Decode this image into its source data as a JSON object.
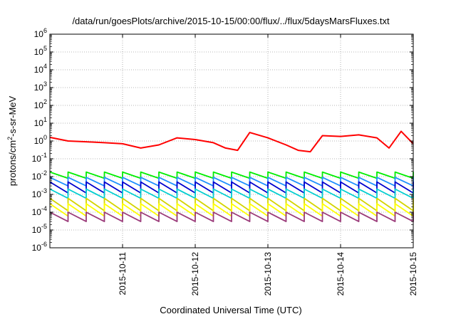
{
  "chart_data": {
    "type": "line",
    "title": "/data/run/goesPlots/archive/2015-10-15/00:00/flux/../flux/5daysMarsFluxes.txt",
    "xlabel": "Coordinated Universal Time (UTC)",
    "ylabel_parts": {
      "base": "protons/cm",
      "sup": "2",
      "rest": "-s-sr-MeV"
    },
    "y_scale": "log",
    "ylim": [
      1e-06,
      1000000.0
    ],
    "y_tick_exponents": [
      -6,
      -5,
      -4,
      -3,
      -2,
      -1,
      0,
      1,
      2,
      3,
      4,
      5,
      6
    ],
    "y_tick_base": "10",
    "xlim": [
      "2015-10-10T00:00",
      "2015-10-15T00:00"
    ],
    "x_ticks": [
      {
        "value": "2015-10-11T00:00",
        "label": "2015-10-11"
      },
      {
        "value": "2015-10-12T00:00",
        "label": "2015-10-12"
      },
      {
        "value": "2015-10-13T00:00",
        "label": "2015-10-13"
      },
      {
        "value": "2015-10-14T00:00",
        "label": "2015-10-14"
      },
      {
        "value": "2015-10-15T00:00",
        "label": "2015-10-15"
      }
    ],
    "grid": true,
    "series": [
      {
        "color": "#ff0000",
        "style": "sawtooth-event",
        "x": [
          "2015-10-10T00:00",
          "2015-10-10T06:00",
          "2015-10-10T12:00",
          "2015-10-10T18:00",
          "2015-10-11T00:00",
          "2015-10-11T06:00",
          "2015-10-11T12:00",
          "2015-10-11T18:00",
          "2015-10-12T00:00",
          "2015-10-12T06:00",
          "2015-10-12T10:00",
          "2015-10-12T14:00",
          "2015-10-12T18:00",
          "2015-10-13T00:00",
          "2015-10-13T06:00",
          "2015-10-13T10:00",
          "2015-10-13T14:00",
          "2015-10-13T18:00",
          "2015-10-14T00:00",
          "2015-10-14T06:00",
          "2015-10-14T12:00",
          "2015-10-14T16:00",
          "2015-10-14T20:00",
          "2015-10-15T00:00"
        ],
        "y": [
          1.6,
          1.0,
          0.9,
          0.8,
          0.7,
          0.4,
          0.6,
          1.5,
          1.2,
          0.8,
          0.4,
          0.3,
          3.0,
          1.5,
          0.6,
          0.3,
          0.25,
          2.0,
          1.8,
          2.2,
          1.5,
          0.4,
          3.5,
          0.7
        ]
      },
      {
        "color": "#00ee00",
        "style": "sawtooth",
        "period_hours": 6,
        "peak": 0.018,
        "trough": 0.008
      },
      {
        "color": "#1e90ff",
        "style": "sawtooth",
        "period_hours": 6,
        "peak": 0.009,
        "trough": 0.003
      },
      {
        "color": "#0000cd",
        "style": "sawtooth",
        "period_hours": 6,
        "peak": 0.005,
        "trough": 0.0012
      },
      {
        "color": "#00ced1",
        "style": "sawtooth",
        "period_hours": 6,
        "peak": 0.002,
        "trough": 0.0006
      },
      {
        "color": "#d4d400",
        "style": "sawtooth",
        "period_hours": 6,
        "peak": 0.0006,
        "trough": 0.00012
      },
      {
        "color": "#ffff00",
        "style": "sawtooth",
        "period_hours": 6,
        "peak": 0.0003,
        "trough": 6e-05
      },
      {
        "color": "#9b3b7a",
        "style": "sawtooth",
        "period_hours": 6,
        "peak": 0.0001,
        "trough": 3e-05
      }
    ]
  }
}
